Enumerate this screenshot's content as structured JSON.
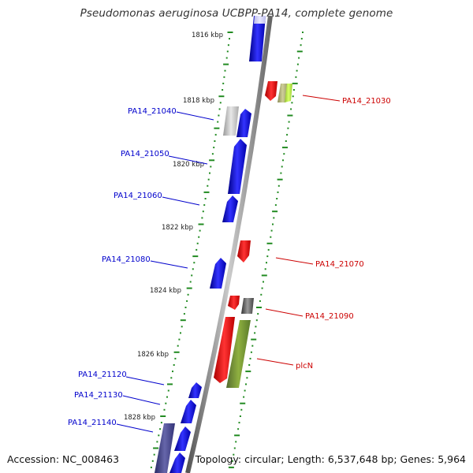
{
  "title": "Pseudomonas aeruginosa UCBPP-PA14, complete genome",
  "accession": "Accession: NC_008463",
  "topology": "Topology: circular; Length: 6,537,648 bp; Genes: 5,964",
  "colors": {
    "forward_gene": "#0000ee",
    "reverse_gene": "#ee0000",
    "forward_label": "#0000cc",
    "reverse_label": "#cc0000",
    "backbone": "#808080",
    "tick": "#228b22"
  },
  "ruler_ticks": [
    "1816 kbp",
    "1818 kbp",
    "1820 kbp",
    "1822 kbp",
    "1824 kbp",
    "1826 kbp",
    "1828 kbp"
  ],
  "forward_labels": [
    "PA14_21040",
    "PA14_21050",
    "PA14_21060",
    "PA14_21080",
    "PA14_21120",
    "PA14_21130",
    "PA14_21140"
  ],
  "reverse_labels": [
    "PA14_21030",
    "PA14_21070",
    "PA14_21090",
    "plcN"
  ]
}
